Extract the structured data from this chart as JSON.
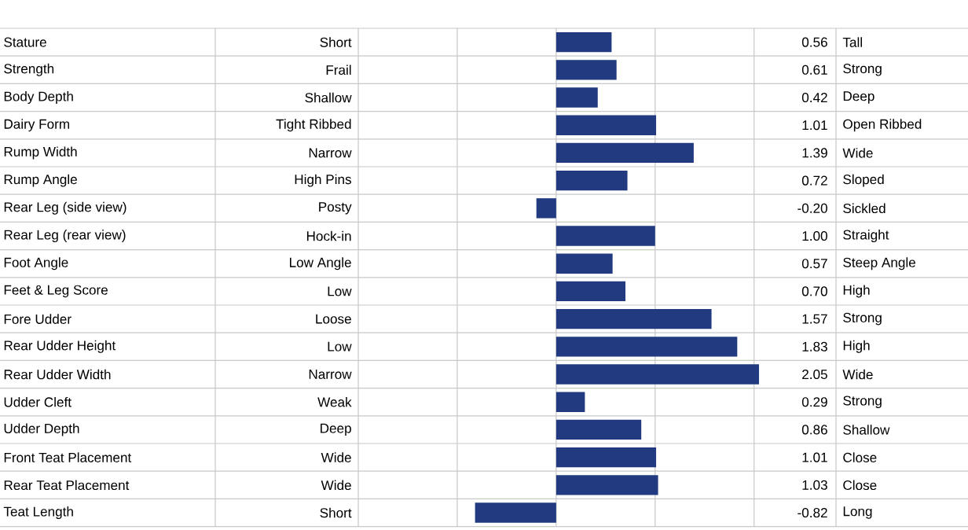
{
  "chart_data": {
    "type": "bar",
    "orientation": "horizontal",
    "color": "#213a80",
    "categories": [
      "Stature",
      "Strength",
      "Body Depth",
      "Dairy Form",
      "Rump Width",
      "Rump Angle",
      "Rear Leg (side view)",
      "Rear Leg (rear view)",
      "Foot Angle",
      "Feet & Leg Score",
      "Fore Udder",
      "Rear Udder Height",
      "Rear Udder Width",
      "Udder Cleft",
      "Udder Depth",
      "Front Teat Placement",
      "Rear Teat Placement",
      "Teat Length"
    ],
    "values": [
      0.56,
      0.61,
      0.42,
      1.01,
      1.39,
      0.72,
      -0.2,
      1.0,
      0.57,
      0.7,
      1.57,
      1.83,
      2.05,
      0.29,
      0.86,
      1.01,
      1.03,
      -0.82
    ],
    "value_labels": [
      "0.56",
      "0.61",
      "0.42",
      "1.01",
      "1.39",
      "0.72",
      "-0.20",
      "1.00",
      "0.57",
      "0.70",
      "1.57",
      "1.83",
      "2.05",
      "0.29",
      "0.86",
      "1.01",
      "1.03",
      "-0.82"
    ],
    "xlim": [
      -2,
      2.05
    ],
    "xticks": [
      -2,
      -1,
      0,
      1,
      2
    ],
    "tick_labels": false,
    "grid": "x",
    "annotations": [
      "Short",
      "Frail",
      "Shallow",
      "Tight Ribbed",
      "Narrow",
      "High Pins",
      "Posty",
      "Hock-in",
      "Low Angle",
      "Low",
      "Loose",
      "Low",
      "Narrow",
      "Weak",
      "Deep",
      "Wide",
      "Wide",
      "Short",
      "Tall",
      "Strong",
      "Deep",
      "Open Ribbed",
      "Wide",
      "Sloped",
      "Sickled",
      "Straight",
      "Steep Angle",
      "High",
      "Strong",
      "High",
      "Wide",
      "Strong",
      "Shallow",
      "Close",
      "Close",
      "Long"
    ]
  }
}
